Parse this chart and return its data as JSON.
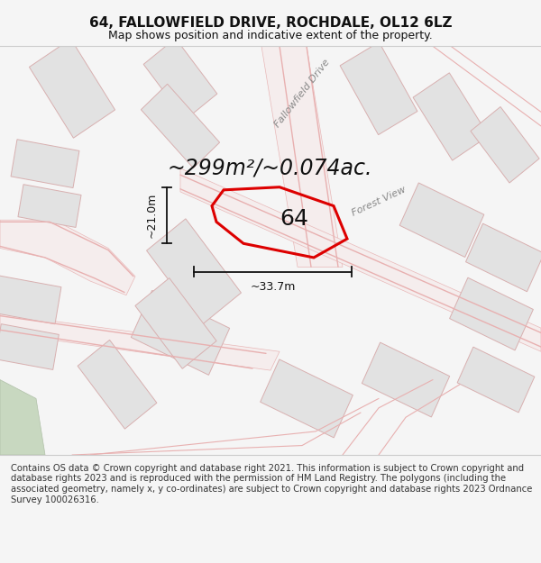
{
  "title": "64, FALLOWFIELD DRIVE, ROCHDALE, OL12 6LZ",
  "subtitle": "Map shows position and indicative extent of the property.",
  "area_text": "~299m²/~0.074ac.",
  "property_number": "64",
  "width_label": "~33.7m",
  "height_label": "~21.0m",
  "footer_text": "Contains OS data © Crown copyright and database right 2021. This information is subject to Crown copyright and database rights 2023 and is reproduced with the permission of HM Land Registry. The polygons (including the associated geometry, namely x, y co-ordinates) are subject to Crown copyright and database rights 2023 Ordnance Survey 100026316.",
  "background_color": "#f5f5f5",
  "map_background": "#ffffff",
  "property_edge_color": "#dd0000",
  "surrounding_fill": "#e0e0e0",
  "surrounding_edge": "#e8a0a0",
  "road_fill": "#f8f0f0",
  "road_edge": "#e8b0b0",
  "title_fontsize": 11,
  "subtitle_fontsize": 9,
  "area_fontsize": 17,
  "label_fontsize": 9,
  "footer_fontsize": 7.2,
  "street_label1": "Fallowfield Drive",
  "street_label2": "Forest View",
  "map_bg": "#fafafa"
}
